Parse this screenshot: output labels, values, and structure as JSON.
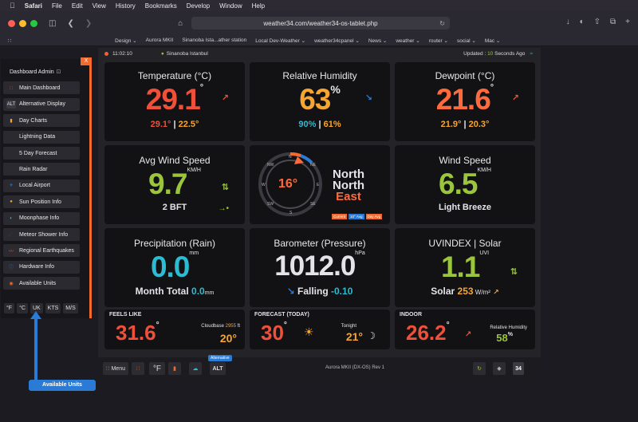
{
  "menubar": {
    "apple": "",
    "app": "Safari",
    "items": [
      "File",
      "Edit",
      "View",
      "History",
      "Bookmarks",
      "Develop",
      "Window",
      "Help"
    ]
  },
  "browser": {
    "url": "weather34.com/weather34-os-tablet.php",
    "favorites": [
      "Design ⌄",
      "Aurora MKII",
      "Sinanoba Ista...ather station",
      "Local Dev-Weather ⌄",
      "weather34cpanel ⌄",
      "News ⌄",
      "weather ⌄",
      "router ⌄",
      " social ⌄",
      " Mac ⌄"
    ]
  },
  "status": {
    "time": "11:02:10",
    "location": "Sinanoba Istanbul",
    "updated_prefix": "Updated : ",
    "updated_value": "10",
    "updated_suffix": " Seconds Ago"
  },
  "temperature": {
    "title": "Temperature (°C)",
    "value": "29.1",
    "unit": "°",
    "hi": "29.1°",
    "sep": " | ",
    "lo": "22.5°"
  },
  "humidity": {
    "title": "Relative Humidity",
    "value": "63",
    "unit": "%",
    "hi": "90%",
    "sep": " | ",
    "lo": "61%"
  },
  "dewpoint": {
    "title": "Dewpoint (°C)",
    "value": "21.6",
    "unit": "°",
    "hi": "21.9°",
    "sep": " | ",
    "lo": "20.3°"
  },
  "avg_wind": {
    "title": "Avg Wind Speed",
    "value": "9.7",
    "unit": "KM/H",
    "bft": "2 BFT"
  },
  "compass": {
    "value": "16°",
    "dir1": "North",
    "dir2": "North",
    "dir3": "East",
    "labels": [
      "N",
      "NE",
      "E",
      "SE",
      "S",
      "SW",
      "W",
      "NW"
    ],
    "legend": [
      "Current",
      "10° Avg",
      "Day Avg"
    ]
  },
  "wind_speed": {
    "title": "Wind Speed",
    "value": "6.5",
    "unit": "KM/H",
    "desc": "Light Breeze"
  },
  "precip": {
    "title": "Precipitation (Rain)",
    "value": "0.0",
    "unit": "mm",
    "month_label": "Month Total ",
    "month_value": "0.0",
    "month_unit": "mm"
  },
  "barometer": {
    "title": "Barometer (Pressure)",
    "value": "1012.0",
    "unit": "hPa",
    "trend": "Falling",
    "delta": "-0.10"
  },
  "uv": {
    "title": "UVINDEX | Solar",
    "value": "1.1",
    "unit": "UVI",
    "solar_label": "Solar ",
    "solar_value": "253",
    "solar_unit": " W/m²"
  },
  "feels": {
    "title": "FEELS LIKE",
    "value": "31.6",
    "unit": "°",
    "cloud_label": "Cloudbase ",
    "cloud_value": "2955",
    "cloud_unit": " ft",
    "cloud_temp": "20°"
  },
  "forecast": {
    "title": "FORECAST (TODAY)",
    "value": "30",
    "unit": "°",
    "tonight_label": "Tonight",
    "tonight_value": "21°"
  },
  "indoor": {
    "title": "INDOOR",
    "value": "26.2",
    "unit": "°",
    "rh_label": "Relative Humidity",
    "rh_value": "58",
    "rh_unit": "%"
  },
  "sidebar": {
    "close": "X",
    "items": [
      {
        "label": "Dashboard Admin",
        "icon": "lock-icon"
      },
      {
        "label": "Main Dashboard",
        "icon": "grid-icon"
      },
      {
        "label": "Alternative Display",
        "icon": "alt-icon"
      },
      {
        "label": "Day Charts",
        "icon": "chart-icon"
      },
      {
        "label": "Lightning Data",
        "icon": "lightning-icon"
      },
      {
        "label": "5 Day Forecast",
        "icon": "forecast-icon"
      },
      {
        "label": "Rain Radar",
        "icon": "cloud-icon"
      },
      {
        "label": "Local Airport",
        "icon": "plane-icon"
      },
      {
        "label": "Sun Position Info",
        "icon": "sun-icon"
      },
      {
        "label": "Moonphase Info",
        "icon": "moon-icon"
      },
      {
        "label": "Meteor Shower Info",
        "icon": "meteor-icon"
      },
      {
        "label": "Regional Earthquakes",
        "icon": "quake-icon"
      },
      {
        "label": "Hardware Info",
        "icon": "info-icon"
      },
      {
        "label": "Available Units",
        "icon": "units-icon"
      }
    ],
    "units": [
      "°F",
      "°C",
      "UK",
      "KTS",
      "M/S"
    ]
  },
  "bottombar": {
    "menu": "Menu",
    "degf": "°F",
    "alt_tag": "Alternative",
    "alt": "ALT",
    "station": "Aurora MKII (DX-OS) Rev 1",
    "logo": "34"
  },
  "callout": "Available Units",
  "colors": {
    "orange": "#ff6a3c",
    "red": "#f0503a",
    "amber": "#f7a531",
    "cyan": "#2bbcd4",
    "lime": "#9ac53c",
    "white": "#e4e4e8",
    "blue": "#2a7bd6"
  }
}
